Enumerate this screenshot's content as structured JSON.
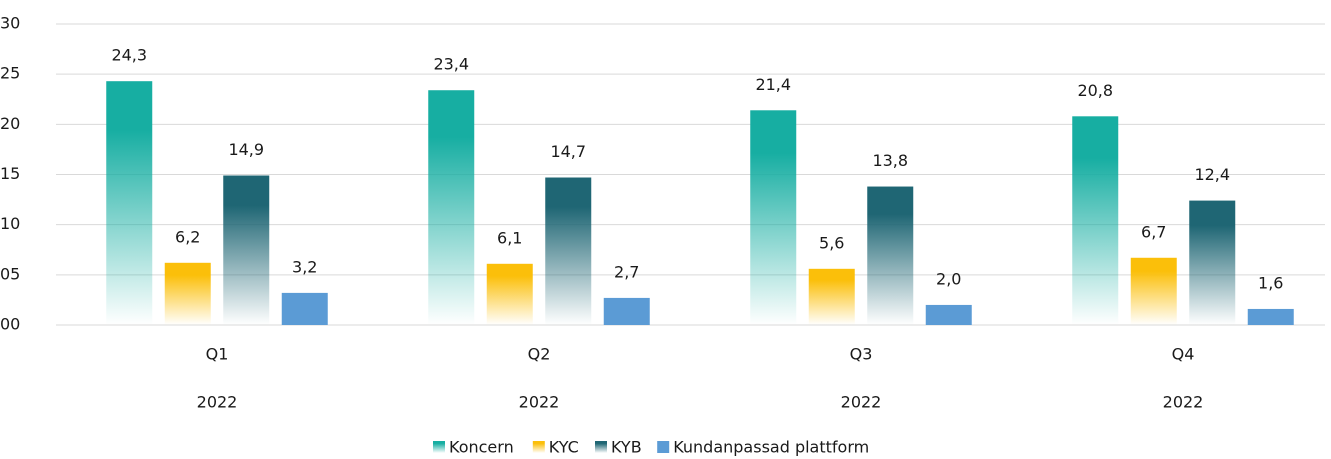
{
  "chart_data": {
    "type": "bar",
    "categories": [
      "Q1",
      "Q2",
      "Q3",
      "Q4"
    ],
    "category_groups": [
      "2022",
      "2022",
      "2022",
      "2022"
    ],
    "series": [
      {
        "name": "Koncern",
        "color": "#17aea2",
        "gradient": true,
        "values": [
          24.3,
          23.4,
          21.4,
          20.8
        ],
        "value_labels": [
          "24,3",
          "23,4",
          "21,4",
          "20,8"
        ]
      },
      {
        "name": "KYC",
        "color": "#fbbf0a",
        "gradient": true,
        "values": [
          6.2,
          6.1,
          5.6,
          6.7
        ],
        "value_labels": [
          "6,2",
          "6,1",
          "5,6",
          "6,7"
        ]
      },
      {
        "name": "KYB",
        "color": "#1f6674",
        "gradient": true,
        "values": [
          14.9,
          14.7,
          13.8,
          12.4
        ],
        "value_labels": [
          "14,9",
          "14,7",
          "13,8",
          "12,4"
        ]
      },
      {
        "name": "Kundanpassad plattform",
        "color": "#5b9bd5",
        "gradient": false,
        "values": [
          3.2,
          2.7,
          2.0,
          1.6
        ],
        "value_labels": [
          "3,2",
          "2,7",
          "2,0",
          "1,6"
        ]
      }
    ],
    "ylim": [
      0,
      30
    ],
    "yticks": [
      {
        "value": 0,
        "label": "00"
      },
      {
        "value": 5,
        "label": "05"
      },
      10,
      15,
      20,
      25,
      30
    ],
    "grid": true,
    "legend": "bottom"
  }
}
